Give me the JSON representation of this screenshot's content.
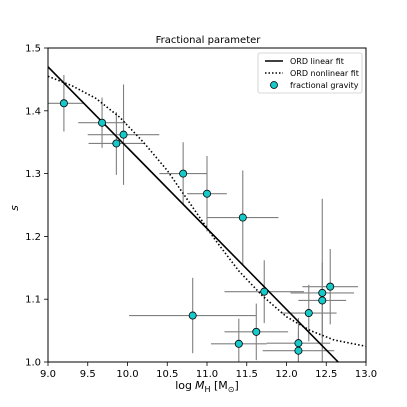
{
  "chart_data": {
    "type": "scatter",
    "title": "Fractional parameter",
    "xlabel_base": "log",
    "xlabel_var": "M",
    "xlabel_sub": "H",
    "xlabel_unit_open": " [M",
    "xlabel_unit_sub": "⊙",
    "xlabel_unit_close": "]",
    "ylabel": "s",
    "xlim": [
      9.0,
      13.0
    ],
    "ylim": [
      1.0,
      1.5
    ],
    "grid": false,
    "legend_position": "top-right",
    "x_ticks": [
      "9.0",
      "9.5",
      "10.0",
      "10.5",
      "11.0",
      "11.5",
      "12.0",
      "12.5",
      "13.0"
    ],
    "y_ticks": [
      "1.0",
      "1.1",
      "1.2",
      "1.3",
      "1.4",
      "1.5"
    ],
    "legend": [
      {
        "label": "ORD linear fit",
        "style": "solid-line"
      },
      {
        "label": "ORD nonlinear fit",
        "style": "dotted-line"
      },
      {
        "label": "fractional gravity",
        "style": "marker"
      }
    ],
    "linear_fit": {
      "x": [
        9.0,
        12.65
      ],
      "y": [
        1.47,
        1.0
      ]
    },
    "nonlinear_fit": {
      "x": [
        9.0,
        9.3,
        9.6,
        9.9,
        10.2,
        10.5,
        10.8,
        11.1,
        11.4,
        11.7,
        12.0,
        12.3,
        12.6,
        13.0
      ],
      "y": [
        1.455,
        1.44,
        1.42,
        1.39,
        1.35,
        1.305,
        1.25,
        1.195,
        1.145,
        1.105,
        1.072,
        1.05,
        1.035,
        1.025
      ]
    },
    "points": [
      {
        "x": 9.2,
        "y": 1.412,
        "xerr": 0.25,
        "yerr": 0.045
      },
      {
        "x": 9.68,
        "y": 1.381,
        "xerr": 0.3,
        "yerr": 0.04
      },
      {
        "x": 9.86,
        "y": 1.348,
        "xerr": 0.35,
        "yerr": 0.05
      },
      {
        "x": 9.95,
        "y": 1.362,
        "xerr": 0.45,
        "yerr": 0.08
      },
      {
        "x": 10.7,
        "y": 1.3,
        "xerr": 0.3,
        "yerr": 0.05
      },
      {
        "x": 11.0,
        "y": 1.268,
        "xerr": 0.25,
        "yerr": 0.06
      },
      {
        "x": 10.82,
        "y": 1.074,
        "xerr": 0.8,
        "yerr": 0.06
      },
      {
        "x": 11.45,
        "y": 1.23,
        "xerr": 0.45,
        "yerr": 0.075
      },
      {
        "x": 11.4,
        "y": 1.029,
        "xerr": 0.35,
        "yerr": 0.04
      },
      {
        "x": 11.62,
        "y": 1.048,
        "xerr": 0.4,
        "yerr": 0.045
      },
      {
        "x": 11.72,
        "y": 1.112,
        "xerr": 0.5,
        "yerr": 0.05
      },
      {
        "x": 12.15,
        "y": 1.03,
        "xerr": 0.4,
        "yerr": 0.04
      },
      {
        "x": 12.15,
        "y": 1.018,
        "xerr": 0.45,
        "yerr": 0.03
      },
      {
        "x": 12.28,
        "y": 1.078,
        "xerr": 0.35,
        "yerr": 0.045
      },
      {
        "x": 12.45,
        "y": 1.11,
        "xerr": 0.4,
        "yerr": 0.15
      },
      {
        "x": 12.45,
        "y": 1.098,
        "xerr": 0.3,
        "yerr": 0.06
      },
      {
        "x": 12.55,
        "y": 1.12,
        "xerr": 0.35,
        "yerr": 0.06
      }
    ],
    "colors": {
      "marker_fill": "#17c9c9",
      "marker_edge": "#000000",
      "errorbar": "#808080",
      "fit_line": "#000000"
    }
  }
}
